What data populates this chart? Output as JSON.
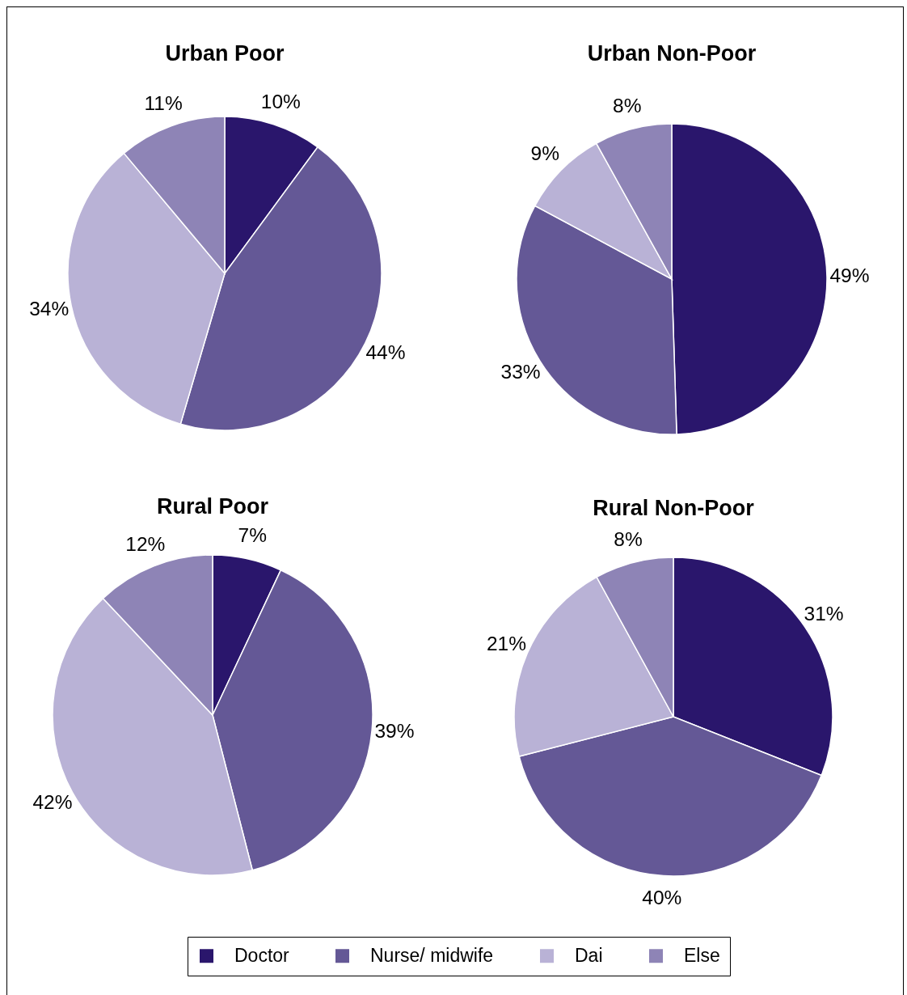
{
  "chart_data": [
    {
      "type": "pie",
      "title": "Urban Poor",
      "categories": [
        null,
        null,
        null,
        null
      ],
      "values": [
        10,
        44,
        34,
        11
      ],
      "value_labels": [
        "10%",
        "44%",
        "34%",
        "11%"
      ],
      "colors": [
        "#2a166c",
        "#645896",
        "#b9b2d6",
        "#8e84b6"
      ]
    },
    {
      "type": "pie",
      "title": "Urban Non-Poor",
      "categories": [
        null,
        null,
        null,
        null
      ],
      "values": [
        49,
        33,
        9,
        8
      ],
      "value_labels": [
        "49%",
        "33%",
        "9%",
        "8%"
      ],
      "colors": [
        "#2a166c",
        "#645896",
        "#b9b2d6",
        "#8e84b6"
      ]
    },
    {
      "type": "pie",
      "title": "Rural Poor",
      "categories": [
        null,
        null,
        null,
        null
      ],
      "values": [
        7,
        39,
        42,
        12
      ],
      "value_labels": [
        "7%",
        "39%",
        "42%",
        "12%"
      ],
      "colors": [
        "#2a166c",
        "#645896",
        "#b9b2d6",
        "#8e84b6"
      ]
    },
    {
      "type": "pie",
      "title": "Rural Non-Poor",
      "categories": [
        "Doctor",
        "Nurse/ midwife",
        "Dai",
        "Else"
      ],
      "values": [
        31,
        40,
        21,
        8
      ],
      "value_labels": [
        "31%",
        "40%",
        "21%",
        "8%"
      ],
      "colors": [
        "#2a166c",
        "#645896",
        "#b9b2d6",
        "#8e84b6"
      ],
      "legend": "bottom"
    }
  ]
}
